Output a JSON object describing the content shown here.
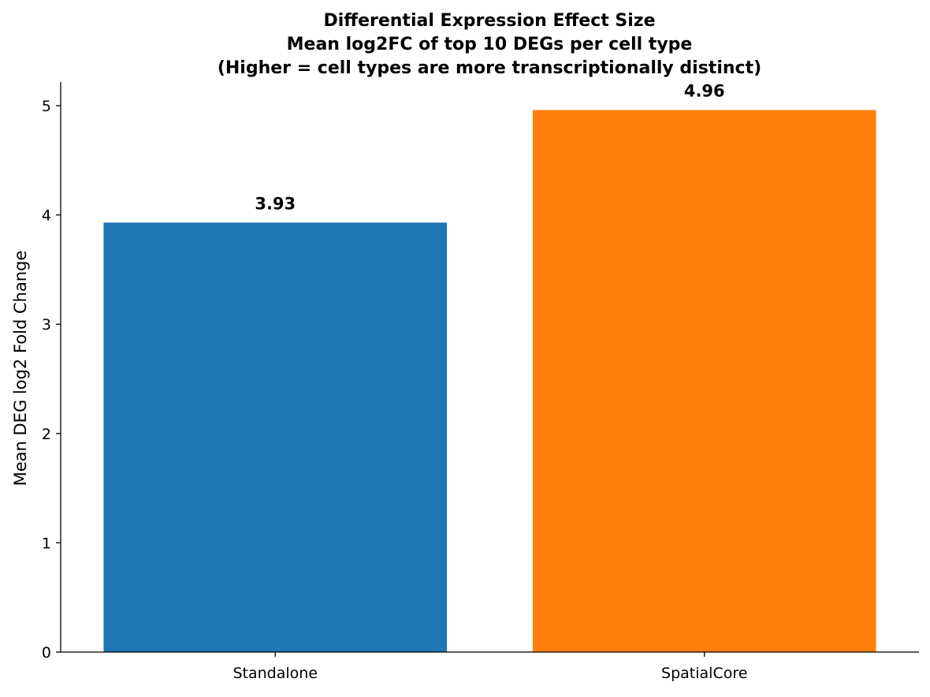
{
  "chart_data": {
    "type": "bar",
    "title_lines": [
      "Differential Expression Effect Size",
      "Mean log2FC of top 10 DEGs per cell type",
      "(Higher = cell types are more transcriptionally distinct)"
    ],
    "categories": [
      "Standalone",
      "SpatialCore"
    ],
    "values": [
      3.93,
      4.96
    ],
    "value_labels": [
      "3.93",
      "4.96"
    ],
    "colors": [
      "#1f77b4",
      "#ff7f0e"
    ],
    "xlabel": "",
    "ylabel": "Mean DEG log2 Fold Change",
    "ylim": [
      0,
      5.2
    ],
    "yticks": [
      0,
      1,
      2,
      3,
      4,
      5
    ],
    "grid": false,
    "legend": "none"
  }
}
